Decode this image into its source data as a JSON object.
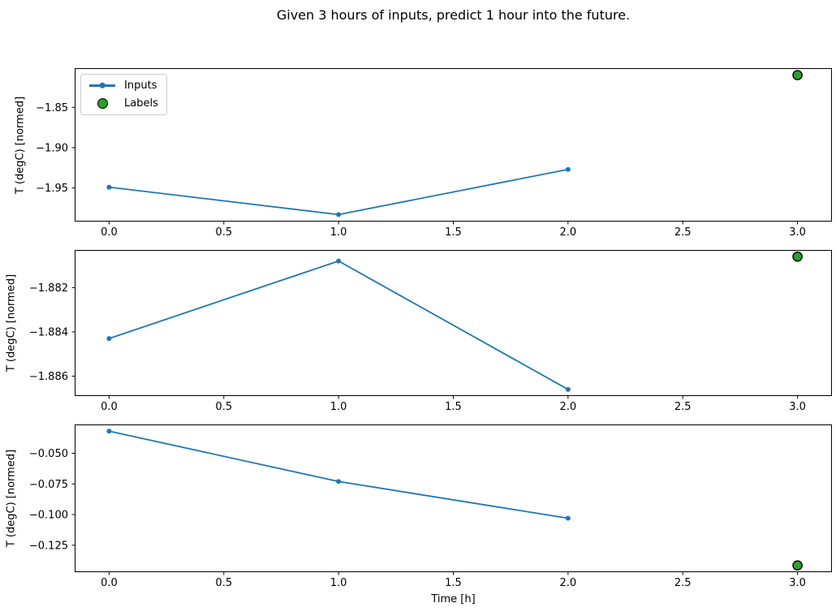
{
  "title": "Given 3 hours of inputs, predict 1 hour into the future.",
  "xlabel": "Time [h]",
  "legend": {
    "items": [
      {
        "label": "Inputs",
        "marker": "line-dot-sample"
      },
      {
        "label": "Labels",
        "marker": "circle-sample"
      }
    ]
  },
  "colors": {
    "inputs_line": "#1f77b4",
    "labels_fill": "#2ca02c",
    "labels_edge": "#000000",
    "spine": "#000000",
    "tick_text": "#000000",
    "legend_border": "#cccccc"
  },
  "chart_data": [
    {
      "type": "line",
      "ylabel": "T (degC) [normed]",
      "legend_visible": true,
      "x": [
        0,
        1,
        2
      ],
      "series": [
        {
          "name": "Inputs",
          "y": [
            -1.949,
            -1.983,
            -1.927
          ]
        }
      ],
      "labels_point": {
        "name": "Labels",
        "x": 3,
        "y": -1.81
      },
      "xlim": [
        -0.15,
        3.15
      ],
      "ylim": [
        -1.9917,
        -1.8014
      ],
      "xticks": {
        "values": [
          0,
          0.5,
          1,
          1.5,
          2,
          2.5,
          3
        ],
        "labels": [
          "0.0",
          "0.5",
          "1.0",
          "1.5",
          "2.0",
          "2.5",
          "3.0"
        ]
      },
      "yticks": {
        "values": [
          -1.85,
          -1.9,
          -1.95
        ],
        "labels": [
          "−1.85",
          "−1.90",
          "−1.95"
        ]
      },
      "grid": false
    },
    {
      "type": "line",
      "ylabel": "T (degC) [normed]",
      "legend_visible": false,
      "x": [
        0,
        1,
        2
      ],
      "series": [
        {
          "name": "Inputs",
          "y": [
            -1.8843,
            -1.8808,
            -1.8866
          ]
        }
      ],
      "labels_point": {
        "name": "Labels",
        "x": 3,
        "y": -1.8806
      },
      "xlim": [
        -0.15,
        3.15
      ],
      "ylim": [
        -1.8869,
        -1.8803
      ],
      "xticks": {
        "values": [
          0,
          0.5,
          1,
          1.5,
          2,
          2.5,
          3
        ],
        "labels": [
          "0.0",
          "0.5",
          "1.0",
          "1.5",
          "2.0",
          "2.5",
          "3.0"
        ]
      },
      "yticks": {
        "values": [
          -1.882,
          -1.884,
          -1.886
        ],
        "labels": [
          "−1.882",
          "−1.884",
          "−1.886"
        ]
      },
      "grid": false
    },
    {
      "type": "line",
      "ylabel": "T (degC) [normed]",
      "xlabel": "Time [h]",
      "legend_visible": false,
      "x": [
        0,
        1,
        2
      ],
      "series": [
        {
          "name": "Inputs",
          "y": [
            -0.032,
            -0.073,
            -0.103
          ]
        }
      ],
      "labels_point": {
        "name": "Labels",
        "x": 3,
        "y": -0.1415
      },
      "xlim": [
        -0.15,
        3.15
      ],
      "ylim": [
        -0.147,
        -0.0265
      ],
      "xticks": {
        "values": [
          0,
          0.5,
          1,
          1.5,
          2,
          2.5,
          3
        ],
        "labels": [
          "0.0",
          "0.5",
          "1.0",
          "1.5",
          "2.0",
          "2.5",
          "3.0"
        ]
      },
      "yticks": {
        "values": [
          -0.05,
          -0.075,
          -0.1,
          -0.125
        ],
        "labels": [
          "−0.050",
          "−0.075",
          "−0.100",
          "−0.125"
        ]
      },
      "grid": false
    }
  ]
}
